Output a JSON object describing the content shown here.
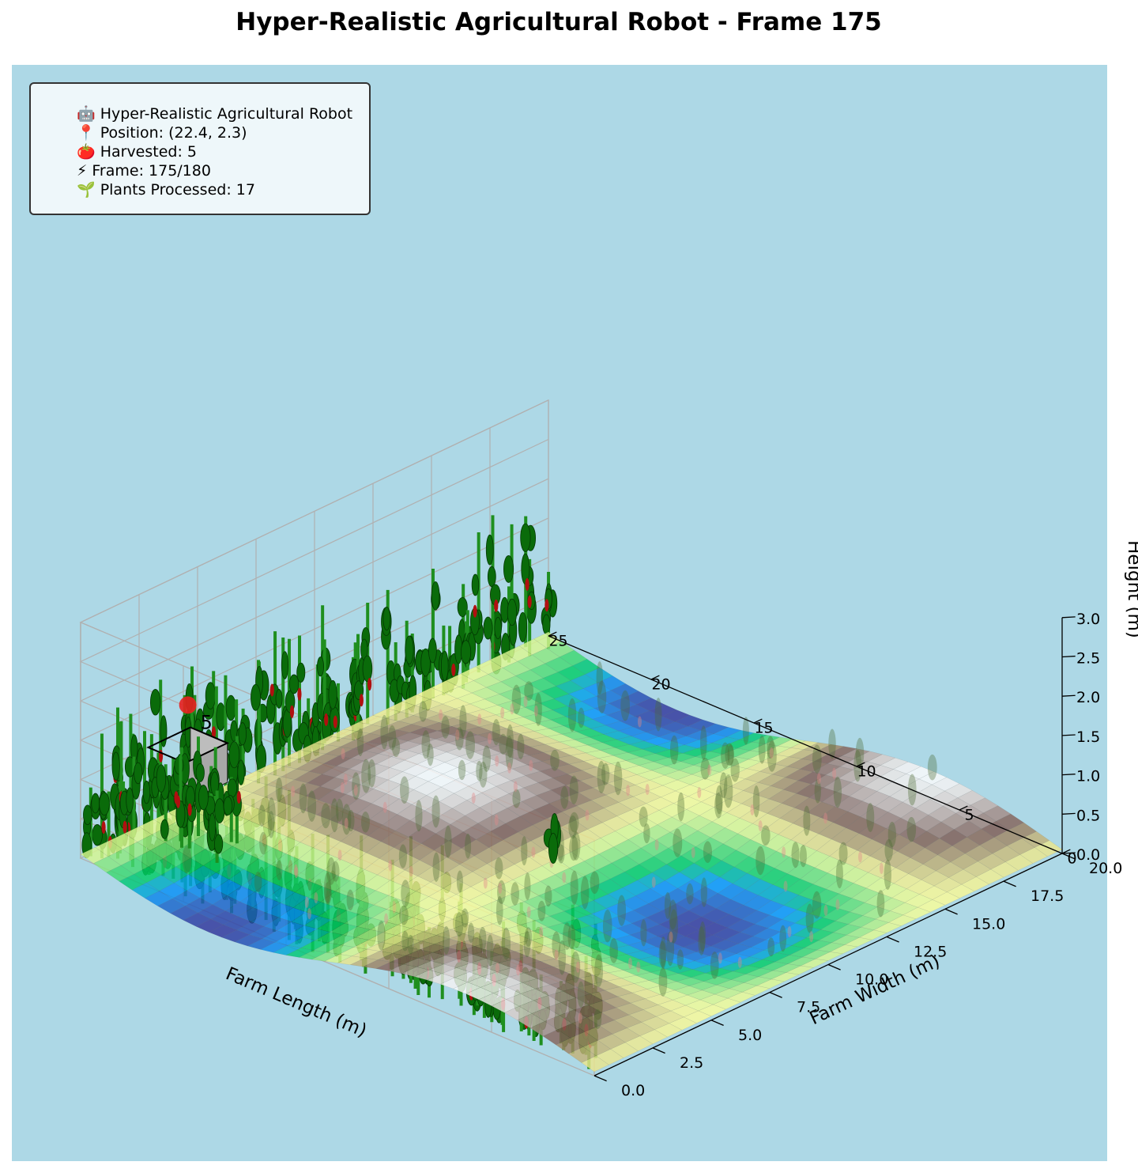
{
  "title": "Hyper-Realistic Agricultural Robot - Frame 175",
  "info_box": [
    "🤖 Hyper-Realistic Agricultural Robot",
    "📍 Position: (22.4, 2.3)",
    "🍅 Harvested: 5",
    "⚡ Frame: 175/180",
    "🌱 Plants Processed: 17"
  ],
  "colors": {
    "figure_bg": "#ffffff",
    "axes_bg": "#add8e6",
    "pane_edge": "#b0b0b0",
    "plant_stem": "#1f8f1f",
    "leaf": "#0a6b0a",
    "tomato": "#b01010",
    "robot_marker": "#e82020",
    "colormap": "terrain"
  },
  "chart_data": {
    "type": "surface",
    "title": "Hyper-Realistic Agricultural Robot - Frame 175",
    "x_axis": {
      "label": "Farm Length (m)",
      "range": [
        0,
        25
      ],
      "ticks": [
        "0",
        "5",
        "10",
        "15",
        "20",
        "25"
      ]
    },
    "y_axis": {
      "label": "Farm Width (m)",
      "range": [
        0,
        20
      ],
      "ticks": [
        "0.0",
        "2.5",
        "5.0",
        "7.5",
        "10.0",
        "12.5",
        "15.0",
        "17.5",
        "20.0"
      ]
    },
    "z_axis": {
      "label": "Height (m)",
      "range": [
        0,
        3
      ],
      "ticks": [
        "0.0",
        "0.5",
        "1.0",
        "1.5",
        "2.0",
        "2.5",
        "3.0"
      ]
    },
    "grid": true,
    "robot": {
      "position": [
        22.4,
        2.3
      ],
      "marker_height": 1.85,
      "label": "5"
    },
    "terrain": {
      "formula": "0.3*sin(2*pi*x/25)*cos(2*pi*y/20)",
      "z_offset": 0.05
    }
  }
}
